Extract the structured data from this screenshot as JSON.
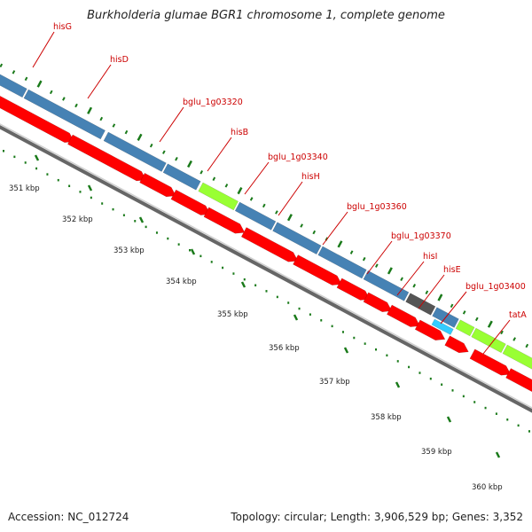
{
  "title": "Burkholderia glumae BGR1 chromosome 1, complete genome",
  "accession_text": "Accession: NC_012724",
  "summary_text": "Topology: circular; Length: 3,906,529 bp; Genes: 3,352",
  "colors": {
    "cds_forward": "#4682b4",
    "cds_reverse": "#ff0000",
    "green_feature": "#99ff33",
    "gray_feature": "#555555",
    "cyan_feature": "#33ccff",
    "olive_feature": "#8a9a3a",
    "tick": "#1a7a1a",
    "label": "#cc0000",
    "backbone": "#999999"
  },
  "gene_labels": [
    "hisG",
    "hisD",
    "bglu_1g03320",
    "hisB",
    "bglu_1g03340",
    "hisH",
    "bglu_1g03360",
    "bglu_1g03370",
    "hisI",
    "hisE",
    "bglu_1g03400",
    "tatA"
  ],
  "kbp_labels": [
    "351 kbp",
    "352 kbp",
    "353 kbp",
    "354 kbp",
    "355 kbp",
    "356 kbp",
    "357 kbp",
    "358 kbp",
    "359 kbp",
    "360 kbp"
  ]
}
